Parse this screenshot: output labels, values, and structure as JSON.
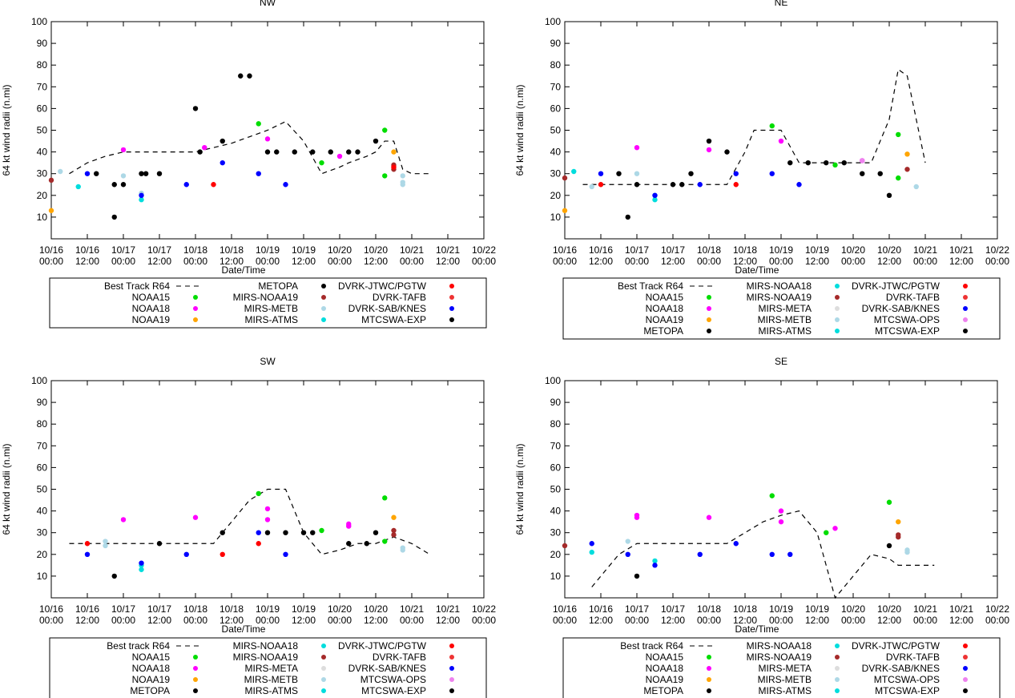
{
  "chart_data": [
    {
      "type": "scatter",
      "title": "NW",
      "xlabel": "Date/Time",
      "ylabel": "64 kt wind radii (n.mi)",
      "ylim": [
        0,
        100
      ],
      "yticks": [
        "10",
        "20",
        "30",
        "40",
        "50",
        "60",
        "70",
        "80",
        "90",
        "100"
      ],
      "xticks": [
        [
          "10/16",
          "00:00"
        ],
        [
          "10/16",
          "12:00"
        ],
        [
          "10/17",
          "00:00"
        ],
        [
          "10/17",
          "12:00"
        ],
        [
          "10/18",
          "00:00"
        ],
        [
          "10/18",
          "12:00"
        ],
        [
          "10/19",
          "00:00"
        ],
        [
          "10/19",
          "12:00"
        ],
        [
          "10/20",
          "00:00"
        ],
        [
          "10/20",
          "12:00"
        ],
        [
          "10/21",
          "00:00"
        ],
        [
          "10/21",
          "12:00"
        ],
        [
          "10/22",
          "00:00"
        ]
      ],
      "best_track": {
        "name": "Best Track R64",
        "x": [
          2,
          4,
          6,
          8,
          10,
          12,
          14,
          16,
          18,
          20,
          22,
          24,
          26,
          28,
          30,
          32,
          33,
          35,
          36,
          37,
          38,
          39,
          40,
          42
        ],
        "y": [
          30,
          35,
          38,
          40,
          40,
          40,
          40,
          40,
          42,
          44,
          47,
          50,
          54,
          45,
          30,
          33,
          35,
          38,
          40,
          45,
          45,
          32,
          30,
          30
        ]
      },
      "series": [
        {
          "name": "NOAA15",
          "color": "#00dd00",
          "x": [
            23,
            30,
            37,
            37
          ],
          "y": [
            53,
            35,
            50,
            29
          ]
        },
        {
          "name": "NOAA18",
          "color": "#ff00ff",
          "x": [
            8,
            17,
            24,
            32
          ],
          "y": [
            41,
            42,
            46,
            38
          ]
        },
        {
          "name": "NOAA19",
          "color": "#ffa500",
          "x": [
            0,
            38
          ],
          "y": [
            13,
            40
          ]
        },
        {
          "name": "METOPA",
          "color": "#000000",
          "x": [
            7,
            10,
            16,
            16.5,
            19,
            21,
            22,
            24,
            25,
            27,
            29,
            31,
            33,
            34,
            36
          ],
          "y": [
            10,
            30,
            60,
            40,
            45,
            75,
            75,
            40,
            40,
            40,
            40,
            40,
            40,
            40,
            45
          ]
        },
        {
          "name": "MIRS-NOAA19",
          "color": "#a52a2a",
          "x": [
            0,
            38,
            38
          ],
          "y": [
            27,
            34,
            32
          ]
        },
        {
          "name": "MIRS-METB",
          "color": "#add8e6",
          "x": [
            1,
            8,
            10,
            39,
            39,
            39
          ],
          "y": [
            31,
            29,
            21,
            29,
            26,
            25
          ]
        },
        {
          "name": "MIRS-ATMS",
          "color": "#00dddd",
          "x": [
            3,
            10
          ],
          "y": [
            24,
            18
          ]
        },
        {
          "name": "DVRK-JTWC/PGTW",
          "color": "#ff0000",
          "x": [
            18,
            38
          ],
          "y": [
            25,
            33
          ]
        },
        {
          "name": "DVRK-TAFB",
          "color": "#ee3333",
          "x": [],
          "y": []
        },
        {
          "name": "DVRK-SAB/KNES",
          "color": "#0000ff",
          "x": [
            4,
            10,
            15,
            19,
            23,
            26
          ],
          "y": [
            30,
            20,
            25,
            35,
            30,
            25
          ]
        },
        {
          "name": "MTCSWA-EXP",
          "color": "#000000",
          "x": [
            5,
            7,
            8,
            10.5,
            12
          ],
          "y": [
            30,
            25,
            25,
            30,
            30
          ]
        }
      ]
    },
    {
      "type": "scatter",
      "title": "NE",
      "xlabel": "Date/Time",
      "ylabel": "64 kt wind radii (n.mi)",
      "ylim": [
        0,
        100
      ],
      "yticks": [
        "10",
        "20",
        "30",
        "40",
        "50",
        "60",
        "70",
        "80",
        "90",
        "100"
      ],
      "xticks": [
        [
          "10/16",
          "00:00"
        ],
        [
          "10/16",
          "12:00"
        ],
        [
          "10/17",
          "00:00"
        ],
        [
          "10/17",
          "12:00"
        ],
        [
          "10/18",
          "00:00"
        ],
        [
          "10/18",
          "12:00"
        ],
        [
          "10/19",
          "00:00"
        ],
        [
          "10/19",
          "12:00"
        ],
        [
          "10/20",
          "00:00"
        ],
        [
          "10/20",
          "12:00"
        ],
        [
          "10/21",
          "00:00"
        ],
        [
          "10/21",
          "12:00"
        ],
        [
          "10/22",
          "00:00"
        ]
      ],
      "best_track": {
        "name": "Best Track R64",
        "x": [
          2,
          4,
          6,
          8,
          10,
          12,
          14,
          16,
          18,
          20,
          21,
          22,
          24,
          26,
          28,
          30,
          32,
          34,
          36,
          37,
          38,
          40
        ],
        "y": [
          25,
          25,
          25,
          25,
          25,
          25,
          25,
          25,
          25,
          40,
          50,
          50,
          50,
          35,
          35,
          35,
          35,
          35,
          55,
          78,
          75,
          35
        ]
      },
      "series": [
        {
          "name": "NOAA15",
          "color": "#00dd00",
          "x": [
            23,
            30,
            37,
            37
          ],
          "y": [
            52,
            34,
            48,
            28
          ]
        },
        {
          "name": "NOAA18",
          "color": "#ff00ff",
          "x": [
            8,
            16,
            24,
            33
          ],
          "y": [
            42,
            41,
            45,
            36
          ]
        },
        {
          "name": "NOAA19",
          "color": "#ffa500",
          "x": [
            0,
            38
          ],
          "y": [
            13,
            39
          ]
        },
        {
          "name": "METOPA",
          "color": "#000000",
          "x": [
            7,
            16,
            18,
            25,
            27,
            29,
            33,
            35
          ],
          "y": [
            10,
            45,
            40,
            35,
            35,
            35,
            30,
            30
          ]
        },
        {
          "name": "MIRS-NOAA18",
          "color": "#00dddd",
          "x": [
            1,
            10
          ],
          "y": [
            31,
            18
          ]
        },
        {
          "name": "MIRS-NOAA19",
          "color": "#a52a2a",
          "x": [
            0,
            38
          ],
          "y": [
            28,
            32
          ]
        },
        {
          "name": "MIRS-META",
          "color": "#dddddd",
          "x": [],
          "y": []
        },
        {
          "name": "MIRS-METB",
          "color": "#add8e6",
          "x": [
            3,
            8,
            39
          ],
          "y": [
            24,
            30,
            24
          ]
        },
        {
          "name": "MIRS-ATMS",
          "color": "#00dddd",
          "x": [
            10
          ],
          "y": [
            20
          ]
        },
        {
          "name": "DVRK-JTWC/PGTW",
          "color": "#ff0000",
          "x": [
            4,
            19
          ],
          "y": [
            25,
            25
          ]
        },
        {
          "name": "DVRK-TAFB",
          "color": "#ee3333",
          "x": [],
          "y": []
        },
        {
          "name": "DVRK-SAB/KNES",
          "color": "#0000ff",
          "x": [
            4,
            10,
            15,
            19,
            23,
            26
          ],
          "y": [
            30,
            20,
            25,
            30,
            30,
            25
          ]
        },
        {
          "name": "MTCSWA-OPS",
          "color": "#ee82ee",
          "x": [
            33
          ],
          "y": [
            36
          ]
        },
        {
          "name": "MTCSWA-EXP",
          "color": "#000000",
          "x": [
            6,
            8,
            12,
            13,
            14,
            31,
            36
          ],
          "y": [
            30,
            25,
            25,
            25,
            30,
            35,
            20
          ]
        }
      ]
    },
    {
      "type": "scatter",
      "title": "SW",
      "xlabel": "Date/Time",
      "ylabel": "64 kt wind radii (n.mi)",
      "ylim": [
        0,
        100
      ],
      "yticks": [
        "10",
        "20",
        "30",
        "40",
        "50",
        "60",
        "70",
        "80",
        "90",
        "100"
      ],
      "xticks": [
        [
          "10/16",
          "00:00"
        ],
        [
          "10/16",
          "12:00"
        ],
        [
          "10/17",
          "00:00"
        ],
        [
          "10/17",
          "12:00"
        ],
        [
          "10/18",
          "00:00"
        ],
        [
          "10/18",
          "12:00"
        ],
        [
          "10/19",
          "00:00"
        ],
        [
          "10/19",
          "12:00"
        ],
        [
          "10/20",
          "00:00"
        ],
        [
          "10/20",
          "12:00"
        ],
        [
          "10/21",
          "00:00"
        ],
        [
          "10/21",
          "12:00"
        ],
        [
          "10/22",
          "00:00"
        ]
      ],
      "best_track": {
        "name": "Best track R64",
        "x": [
          2,
          4,
          6,
          8,
          10,
          12,
          14,
          16,
          18,
          20,
          22,
          24,
          26,
          28,
          30,
          32,
          34,
          36,
          38,
          40,
          42
        ],
        "y": [
          25,
          25,
          25,
          25,
          25,
          25,
          25,
          25,
          25,
          35,
          45,
          50,
          50,
          30,
          20,
          22,
          25,
          25,
          28,
          25,
          20
        ]
      },
      "series": [
        {
          "name": "NOAA15",
          "color": "#00dd00",
          "x": [
            23,
            30,
            37,
            37
          ],
          "y": [
            48,
            31,
            46,
            26
          ]
        },
        {
          "name": "NOAA18",
          "color": "#ff00ff",
          "x": [
            8,
            16,
            24,
            24,
            33,
            33
          ],
          "y": [
            36,
            37,
            41,
            36,
            34,
            33
          ]
        },
        {
          "name": "NOAA19",
          "color": "#ffa500",
          "x": [
            38
          ],
          "y": [
            37
          ]
        },
        {
          "name": "METOPA",
          "color": "#000000",
          "x": [
            7,
            12,
            19,
            24,
            26,
            28,
            29,
            33,
            35,
            36
          ],
          "y": [
            10,
            25,
            30,
            30,
            30,
            30,
            30,
            25,
            25,
            30
          ]
        },
        {
          "name": "MIRS-NOAA18",
          "color": "#00dddd",
          "x": [
            10
          ],
          "y": [
            13
          ]
        },
        {
          "name": "MIRS-NOAA19",
          "color": "#a52a2a",
          "x": [
            38,
            38
          ],
          "y": [
            31,
            29
          ]
        },
        {
          "name": "MIRS-META",
          "color": "#dddddd",
          "x": [],
          "y": []
        },
        {
          "name": "MIRS-METB",
          "color": "#add8e6",
          "x": [
            6,
            6,
            39,
            39
          ],
          "y": [
            26,
            24,
            23,
            22
          ]
        },
        {
          "name": "MIRS-ATMS",
          "color": "#00dddd",
          "x": [
            10
          ],
          "y": [
            15
          ]
        },
        {
          "name": "DVRK-JTWC/PGTW",
          "color": "#ff0000",
          "x": [
            4,
            19,
            23
          ],
          "y": [
            25,
            20,
            25
          ]
        },
        {
          "name": "DVRK-TAFB",
          "color": "#ee3333",
          "x": [],
          "y": []
        },
        {
          "name": "DVRK-SAB/KNES",
          "color": "#0000ff",
          "x": [
            4,
            10,
            15,
            23,
            26
          ],
          "y": [
            20,
            16,
            20,
            30,
            20
          ]
        },
        {
          "name": "MTCSWA-OPS",
          "color": "#ee82ee",
          "x": [],
          "y": []
        },
        {
          "name": "MTCSWA-EXP",
          "color": "#000000",
          "x": [],
          "y": []
        }
      ]
    },
    {
      "type": "scatter",
      "title": "SE",
      "xlabel": "Date/Time",
      "ylabel": "64 kt wind radii (n.mi)",
      "ylim": [
        0,
        100
      ],
      "yticks": [
        "10",
        "20",
        "30",
        "40",
        "50",
        "60",
        "70",
        "80",
        "90",
        "100"
      ],
      "xticks": [
        [
          "10/16",
          "00:00"
        ],
        [
          "10/16",
          "12:00"
        ],
        [
          "10/17",
          "00:00"
        ],
        [
          "10/17",
          "12:00"
        ],
        [
          "10/18",
          "00:00"
        ],
        [
          "10/18",
          "12:00"
        ],
        [
          "10/19",
          "00:00"
        ],
        [
          "10/19",
          "12:00"
        ],
        [
          "10/20",
          "00:00"
        ],
        [
          "10/20",
          "12:00"
        ],
        [
          "10/21",
          "00:00"
        ],
        [
          "10/21",
          "12:00"
        ],
        [
          "10/22",
          "00:00"
        ]
      ],
      "best_track": {
        "name": "Best track R64",
        "x": [
          3,
          4,
          6,
          8,
          10,
          12,
          14,
          16,
          18,
          20,
          22,
          24,
          26,
          28,
          30,
          32,
          34,
          36,
          37,
          38,
          40,
          41
        ],
        "y": [
          5,
          10,
          20,
          25,
          25,
          25,
          25,
          25,
          25,
          30,
          35,
          38,
          40,
          30,
          0,
          10,
          20,
          18,
          15,
          15,
          15,
          15
        ]
      },
      "series": [
        {
          "name": "NOAA15",
          "color": "#00dd00",
          "x": [
            23,
            29,
            36
          ],
          "y": [
            47,
            30,
            44
          ]
        },
        {
          "name": "NOAA18",
          "color": "#ff00ff",
          "x": [
            8,
            8,
            16,
            24,
            24,
            30
          ],
          "y": [
            38,
            37,
            37,
            40,
            35,
            32
          ]
        },
        {
          "name": "NOAA19",
          "color": "#ffa500",
          "x": [
            37
          ],
          "y": [
            35
          ]
        },
        {
          "name": "METOPA",
          "color": "#000000",
          "x": [
            8
          ],
          "y": [
            10
          ]
        },
        {
          "name": "MIRS-NOAA18",
          "color": "#00dddd",
          "x": [
            3,
            10
          ],
          "y": [
            21,
            17
          ]
        },
        {
          "name": "MIRS-NOAA19",
          "color": "#a52a2a",
          "x": [
            0,
            37,
            37
          ],
          "y": [
            24,
            29,
            28
          ]
        },
        {
          "name": "MIRS-META",
          "color": "#dddddd",
          "x": [],
          "y": []
        },
        {
          "name": "MIRS-METB",
          "color": "#add8e6",
          "x": [
            7,
            38,
            38
          ],
          "y": [
            26,
            22,
            21
          ]
        },
        {
          "name": "MIRS-ATMS",
          "color": "#00dddd",
          "x": [],
          "y": []
        },
        {
          "name": "DVRK-JTWC/PGTW",
          "color": "#ff0000",
          "x": [],
          "y": []
        },
        {
          "name": "DVRK-TAFB",
          "color": "#ee3333",
          "x": [],
          "y": []
        },
        {
          "name": "DVRK-SAB/KNES",
          "color": "#0000ff",
          "x": [
            3,
            7,
            10,
            15,
            19,
            23,
            25
          ],
          "y": [
            25,
            20,
            15,
            20,
            25,
            20,
            20
          ]
        },
        {
          "name": "MTCSWA-OPS",
          "color": "#ee82ee",
          "x": [],
          "y": []
        },
        {
          "name": "MTCSWA-EXP",
          "color": "#000000",
          "x": [
            36
          ],
          "y": [
            24
          ]
        }
      ]
    }
  ]
}
